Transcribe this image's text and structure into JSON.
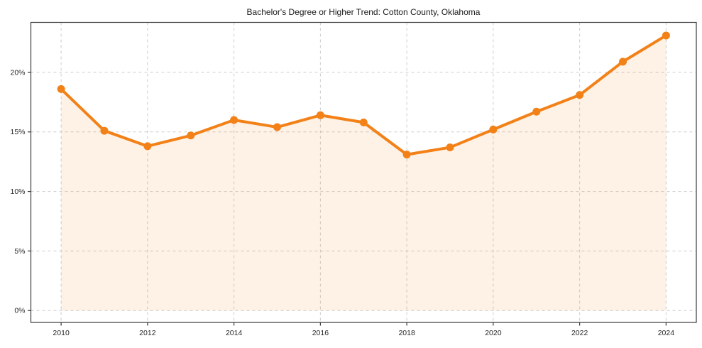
{
  "colors": {
    "line": "#f28118",
    "marker": "#f28118",
    "area_fill": "#f28118",
    "grid": "#cccccc",
    "axis": "#3a3a3a",
    "tick_text": "#262626",
    "title_text": "#1a1a1a",
    "background": "#ffffff"
  },
  "chart_data": {
    "type": "line",
    "title": "Bachelor's Degree or Higher Trend: Cotton County, Oklahoma",
    "xlabel": "",
    "ylabel": "",
    "x": [
      2010,
      2011,
      2012,
      2013,
      2014,
      2015,
      2016,
      2017,
      2018,
      2019,
      2020,
      2021,
      2022,
      2023,
      2024
    ],
    "values": [
      18.6,
      15.1,
      13.8,
      14.7,
      16.0,
      15.4,
      16.4,
      15.8,
      13.1,
      13.7,
      15.2,
      16.7,
      18.1,
      20.9,
      23.1
    ],
    "x_tick_values": [
      2010,
      2012,
      2014,
      2016,
      2018,
      2020,
      2022,
      2024
    ],
    "x_tick_labels": [
      "2010",
      "2012",
      "2014",
      "2016",
      "2018",
      "2020",
      "2022",
      "2024"
    ],
    "y_tick_values": [
      0,
      5,
      10,
      15,
      20
    ],
    "y_tick_labels": [
      "0%",
      "5%",
      "10%",
      "15%",
      "20%"
    ],
    "xlim": [
      2009.3,
      2024.7
    ],
    "ylim": [
      -1.0,
      24.2
    ],
    "grid": true,
    "grid_style": "dashed",
    "legend": false,
    "marker": "circle",
    "area_fill_to_zero": true
  }
}
